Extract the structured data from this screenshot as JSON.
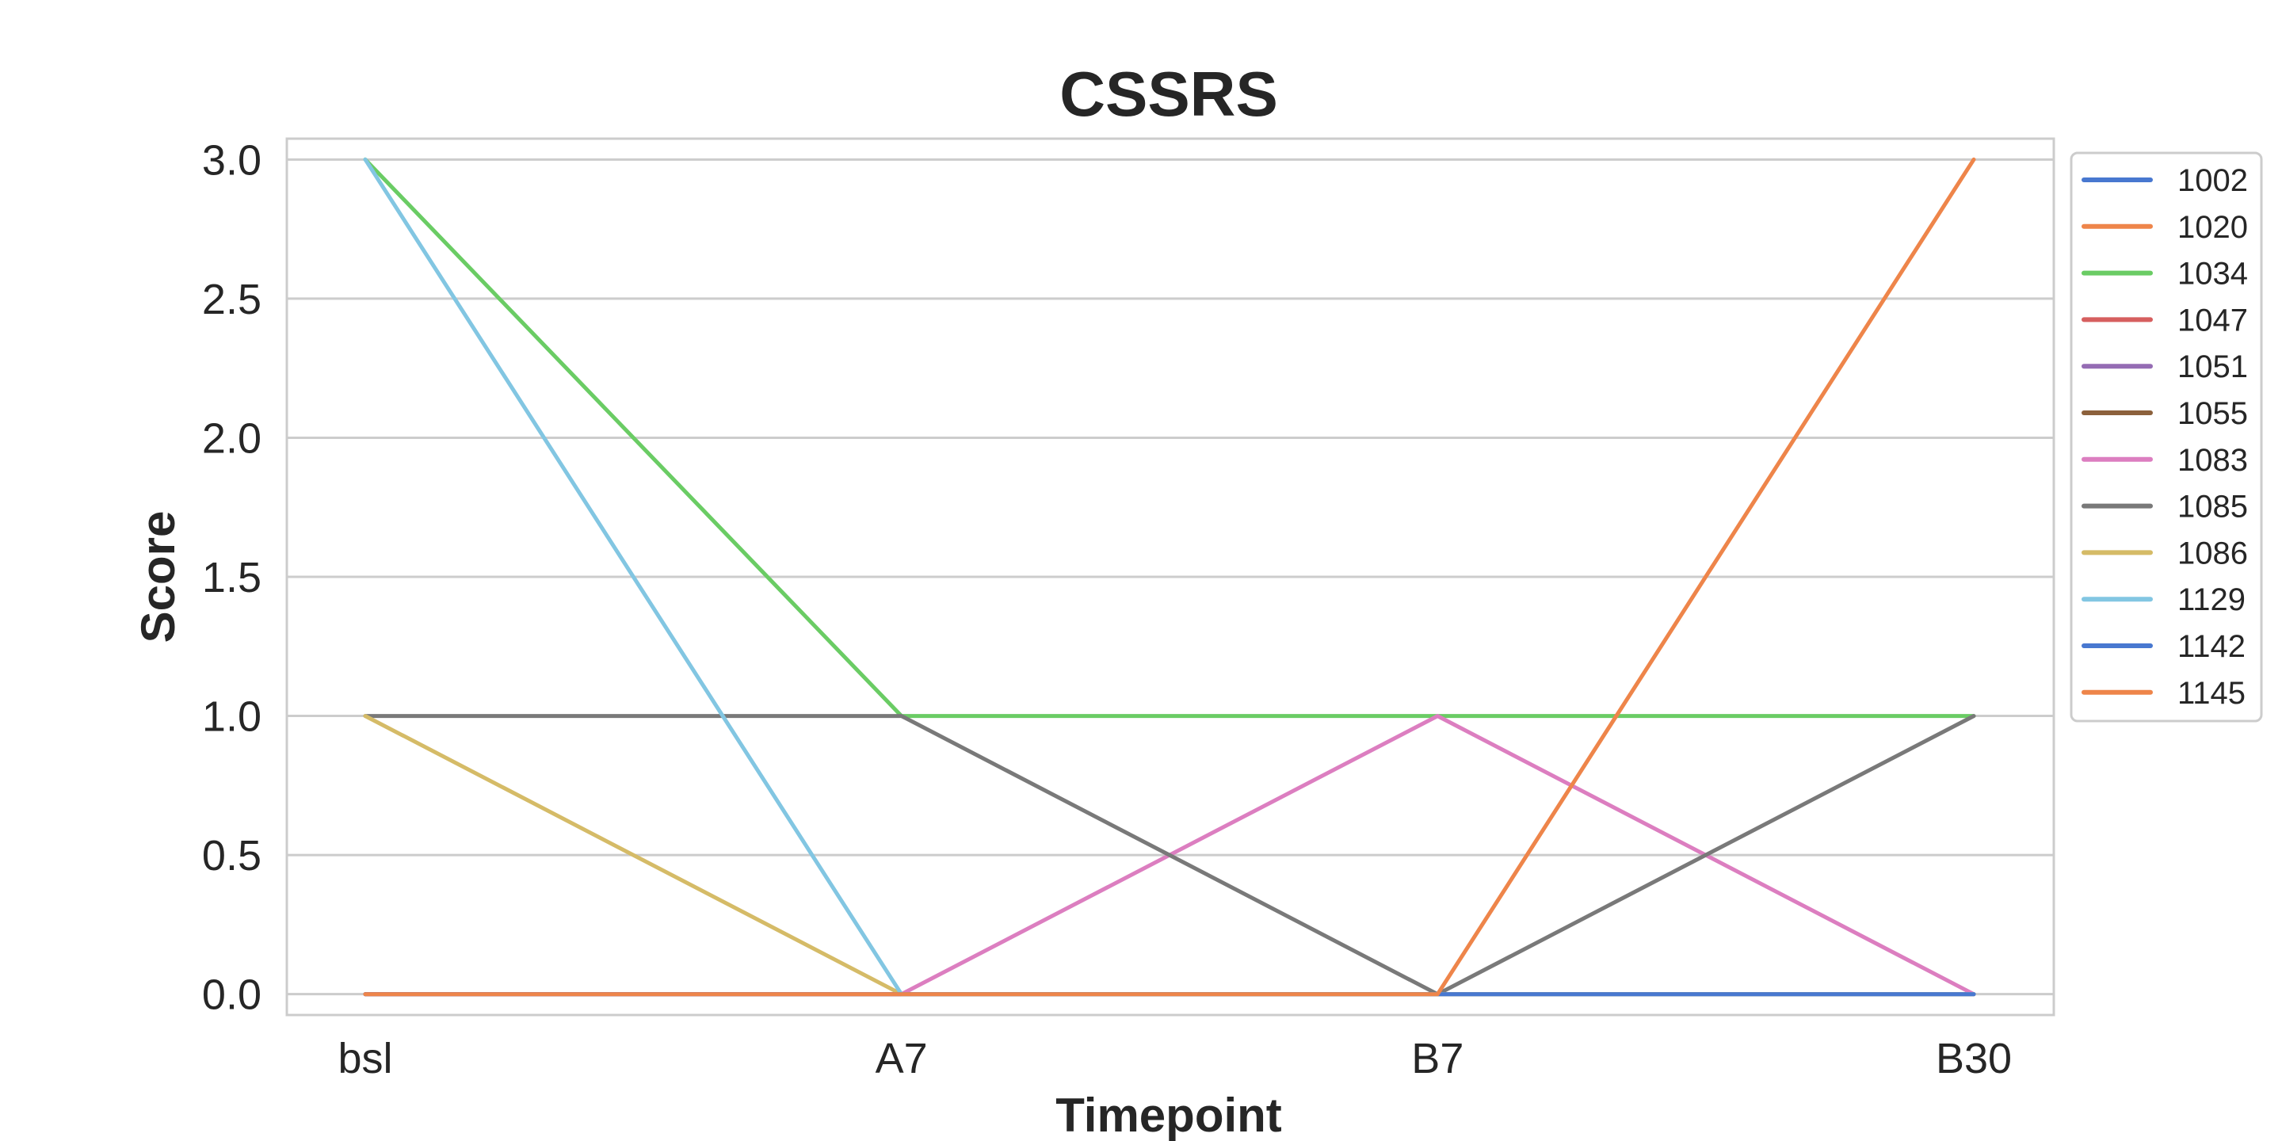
{
  "chart_data": {
    "type": "line",
    "title": "CSSRS",
    "xlabel": "Timepoint",
    "ylabel": "Score",
    "categories": [
      "bsl",
      "A7",
      "B7",
      "B30"
    ],
    "yticks": [
      "0.0",
      "0.5",
      "1.0",
      "1.5",
      "2.0",
      "2.5",
      "3.0"
    ],
    "ylim": [
      -0.075,
      3.075
    ],
    "grid": "horizontal",
    "legend_position": "right",
    "series": [
      {
        "name": "1002",
        "color": "#4878d0",
        "values": [
          0,
          0,
          0,
          0
        ]
      },
      {
        "name": "1020",
        "color": "#ee854a",
        "values": [
          0,
          0,
          0,
          0
        ]
      },
      {
        "name": "1034",
        "color": "#6acc64",
        "values": [
          3,
          1,
          1,
          1
        ]
      },
      {
        "name": "1047",
        "color": "#d65f5f",
        "values": [
          0,
          0,
          0,
          0
        ]
      },
      {
        "name": "1051",
        "color": "#956cb4",
        "values": [
          0,
          0,
          0,
          0
        ]
      },
      {
        "name": "1055",
        "color": "#8c613c",
        "values": [
          0,
          0,
          0,
          0
        ]
      },
      {
        "name": "1083",
        "color": "#dc7ec0",
        "values": [
          0,
          0,
          1,
          0
        ]
      },
      {
        "name": "1085",
        "color": "#797979",
        "values": [
          1,
          1,
          0,
          1
        ]
      },
      {
        "name": "1086",
        "color": "#d5bb67",
        "values": [
          1,
          0,
          0,
          0
        ]
      },
      {
        "name": "1129",
        "color": "#82c6e2",
        "values": [
          3,
          0,
          0,
          0
        ]
      },
      {
        "name": "1142",
        "color": "#4878d0",
        "values": [
          0,
          0,
          0,
          0
        ]
      },
      {
        "name": "1145",
        "color": "#ee854a",
        "values": [
          0,
          0,
          0,
          3
        ]
      }
    ]
  }
}
